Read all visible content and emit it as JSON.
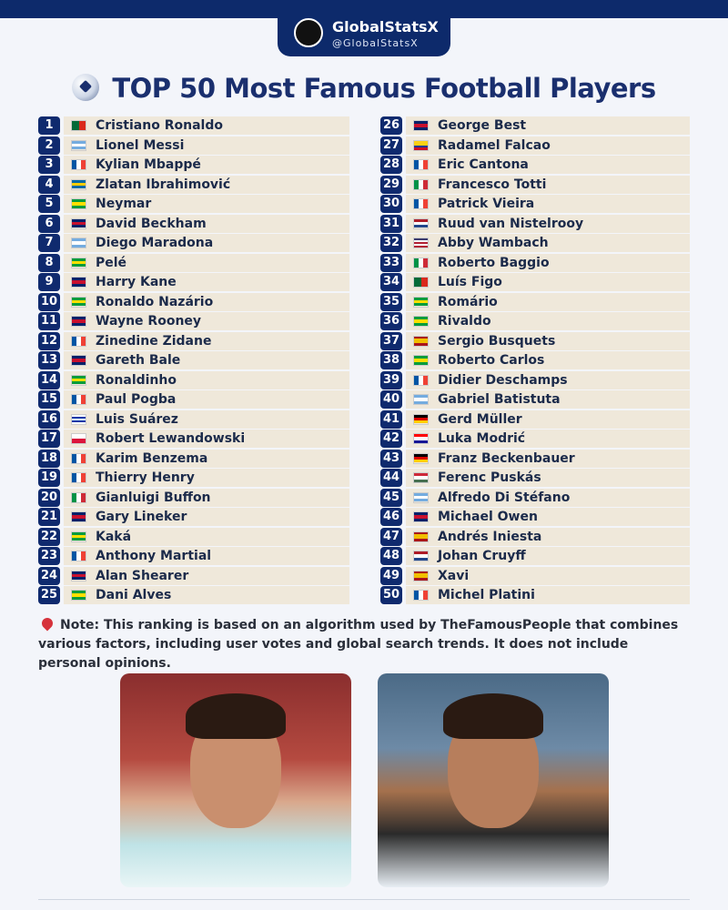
{
  "header": {
    "brand": "GlobalStatsX",
    "handle": "@GlobalStatsX"
  },
  "title": "TOP 50 Most Famous Football Players",
  "players": [
    {
      "rank": 1,
      "name": "Cristiano Ronaldo",
      "flag": [
        "v",
        "#046a38",
        "#da291c"
      ]
    },
    {
      "rank": 2,
      "name": "Lionel Messi",
      "flag": [
        "h",
        "#74acdf",
        "#ffffff",
        "#74acdf"
      ]
    },
    {
      "rank": 3,
      "name": "Kylian Mbappé",
      "flag": [
        "v",
        "#0055a4",
        "#ffffff",
        "#ef4135"
      ]
    },
    {
      "rank": 4,
      "name": "Zlatan Ibrahimović",
      "flag": [
        "h",
        "#006aa7",
        "#fecc00",
        "#006aa7"
      ]
    },
    {
      "rank": 5,
      "name": "Neymar",
      "flag": [
        "h",
        "#009c3b",
        "#ffdf00",
        "#009c3b"
      ]
    },
    {
      "rank": 6,
      "name": "David Beckham",
      "flag": [
        "h",
        "#012169",
        "#c8102e",
        "#012169"
      ]
    },
    {
      "rank": 7,
      "name": "Diego Maradona",
      "flag": [
        "h",
        "#74acdf",
        "#ffffff",
        "#74acdf"
      ]
    },
    {
      "rank": 8,
      "name": "Pelé",
      "flag": [
        "h",
        "#009c3b",
        "#ffdf00",
        "#009c3b"
      ]
    },
    {
      "rank": 9,
      "name": "Harry Kane",
      "flag": [
        "h",
        "#012169",
        "#c8102e",
        "#012169"
      ]
    },
    {
      "rank": 10,
      "name": "Ronaldo Nazário",
      "flag": [
        "h",
        "#009c3b",
        "#ffdf00",
        "#009c3b"
      ]
    },
    {
      "rank": 11,
      "name": "Wayne Rooney",
      "flag": [
        "h",
        "#012169",
        "#c8102e",
        "#012169"
      ]
    },
    {
      "rank": 12,
      "name": "Zinedine Zidane",
      "flag": [
        "v",
        "#0055a4",
        "#ffffff",
        "#ef4135"
      ]
    },
    {
      "rank": 13,
      "name": "Gareth Bale",
      "flag": [
        "h",
        "#012169",
        "#c8102e",
        "#012169"
      ]
    },
    {
      "rank": 14,
      "name": "Ronaldinho",
      "flag": [
        "h",
        "#009c3b",
        "#ffdf00",
        "#009c3b"
      ]
    },
    {
      "rank": 15,
      "name": "Paul Pogba",
      "flag": [
        "v",
        "#0055a4",
        "#ffffff",
        "#ef4135"
      ]
    },
    {
      "rank": 16,
      "name": "Luis Suárez",
      "flag": [
        "h",
        "#ffffff",
        "#0038a8",
        "#ffffff",
        "#0038a8",
        "#ffffff"
      ]
    },
    {
      "rank": 17,
      "name": "Robert Lewandowski",
      "flag": [
        "h",
        "#ffffff",
        "#dc143c"
      ]
    },
    {
      "rank": 18,
      "name": "Karim Benzema",
      "flag": [
        "v",
        "#0055a4",
        "#ffffff",
        "#ef4135"
      ]
    },
    {
      "rank": 19,
      "name": "Thierry Henry",
      "flag": [
        "v",
        "#0055a4",
        "#ffffff",
        "#ef4135"
      ]
    },
    {
      "rank": 20,
      "name": "Gianluigi Buffon",
      "flag": [
        "v",
        "#009246",
        "#ffffff",
        "#ce2b37"
      ]
    },
    {
      "rank": 21,
      "name": "Gary Lineker",
      "flag": [
        "h",
        "#012169",
        "#c8102e",
        "#012169"
      ]
    },
    {
      "rank": 22,
      "name": "Kaká",
      "flag": [
        "h",
        "#009c3b",
        "#ffdf00",
        "#009c3b"
      ]
    },
    {
      "rank": 23,
      "name": "Anthony Martial",
      "flag": [
        "v",
        "#0055a4",
        "#ffffff",
        "#ef4135"
      ]
    },
    {
      "rank": 24,
      "name": "Alan Shearer",
      "flag": [
        "h",
        "#012169",
        "#c8102e",
        "#012169"
      ]
    },
    {
      "rank": 25,
      "name": "Dani Alves",
      "flag": [
        "h",
        "#009c3b",
        "#ffdf00",
        "#009c3b"
      ]
    },
    {
      "rank": 26,
      "name": "George Best",
      "flag": [
        "h",
        "#012169",
        "#c8102e",
        "#012169"
      ]
    },
    {
      "rank": 27,
      "name": "Radamel Falcao",
      "flag": [
        "h",
        "#fcd116",
        "#fcd116",
        "#003893",
        "#ce1126"
      ]
    },
    {
      "rank": 28,
      "name": "Eric Cantona",
      "flag": [
        "v",
        "#0055a4",
        "#ffffff",
        "#ef4135"
      ]
    },
    {
      "rank": 29,
      "name": "Francesco Totti",
      "flag": [
        "v",
        "#009246",
        "#ffffff",
        "#ce2b37"
      ]
    },
    {
      "rank": 30,
      "name": "Patrick Vieira",
      "flag": [
        "v",
        "#0055a4",
        "#ffffff",
        "#ef4135"
      ]
    },
    {
      "rank": 31,
      "name": "Ruud van Nistelrooy",
      "flag": [
        "h",
        "#ae1c28",
        "#ffffff",
        "#21468b"
      ]
    },
    {
      "rank": 32,
      "name": "Abby Wambach",
      "flag": [
        "h",
        "#3c3b6e",
        "#ffffff",
        "#b22234",
        "#ffffff",
        "#b22234"
      ]
    },
    {
      "rank": 33,
      "name": "Roberto Baggio",
      "flag": [
        "v",
        "#009246",
        "#ffffff",
        "#ce2b37"
      ]
    },
    {
      "rank": 34,
      "name": "Luís Figo",
      "flag": [
        "v",
        "#046a38",
        "#da291c"
      ]
    },
    {
      "rank": 35,
      "name": "Romário",
      "flag": [
        "h",
        "#009c3b",
        "#ffdf00",
        "#009c3b"
      ]
    },
    {
      "rank": 36,
      "name": "Rivaldo",
      "flag": [
        "h",
        "#009c3b",
        "#ffdf00",
        "#009c3b"
      ]
    },
    {
      "rank": 37,
      "name": "Sergio Busquets",
      "flag": [
        "h",
        "#aa151b",
        "#f1bf00",
        "#f1bf00",
        "#aa151b"
      ]
    },
    {
      "rank": 38,
      "name": "Roberto Carlos",
      "flag": [
        "h",
        "#009c3b",
        "#ffdf00",
        "#009c3b"
      ]
    },
    {
      "rank": 39,
      "name": "Didier Deschamps",
      "flag": [
        "v",
        "#0055a4",
        "#ffffff",
        "#ef4135"
      ]
    },
    {
      "rank": 40,
      "name": "Gabriel Batistuta",
      "flag": [
        "h",
        "#74acdf",
        "#ffffff",
        "#74acdf"
      ]
    },
    {
      "rank": 41,
      "name": "Gerd Müller",
      "flag": [
        "h",
        "#000000",
        "#dd0000",
        "#ffce00"
      ]
    },
    {
      "rank": 42,
      "name": "Luka Modrić",
      "flag": [
        "h",
        "#ff0000",
        "#ffffff",
        "#171796"
      ]
    },
    {
      "rank": 43,
      "name": "Franz Beckenbauer",
      "flag": [
        "h",
        "#000000",
        "#dd0000",
        "#ffce00"
      ]
    },
    {
      "rank": 44,
      "name": "Ferenc Puskás",
      "flag": [
        "h",
        "#ce2939",
        "#ffffff",
        "#477050"
      ]
    },
    {
      "rank": 45,
      "name": "Alfredo Di Stéfano",
      "flag": [
        "h",
        "#74acdf",
        "#ffffff",
        "#74acdf"
      ]
    },
    {
      "rank": 46,
      "name": "Michael Owen",
      "flag": [
        "h",
        "#012169",
        "#c8102e",
        "#012169"
      ]
    },
    {
      "rank": 47,
      "name": "Andrés Iniesta",
      "flag": [
        "h",
        "#aa151b",
        "#f1bf00",
        "#f1bf00",
        "#aa151b"
      ]
    },
    {
      "rank": 48,
      "name": "Johan Cruyff",
      "flag": [
        "h",
        "#ae1c28",
        "#ffffff",
        "#21468b"
      ]
    },
    {
      "rank": 49,
      "name": "Xavi",
      "flag": [
        "h",
        "#aa151b",
        "#f1bf00",
        "#f1bf00",
        "#aa151b"
      ]
    },
    {
      "rank": 50,
      "name": "Michel Platini",
      "flag": [
        "v",
        "#0055a4",
        "#ffffff",
        "#ef4135"
      ]
    }
  ],
  "note": {
    "label": "Note:",
    "text": "This ranking is based on an algorithm used by TheFamousPeople that combines various factors, including user votes and global search trends. It does not include personal opinions."
  }
}
